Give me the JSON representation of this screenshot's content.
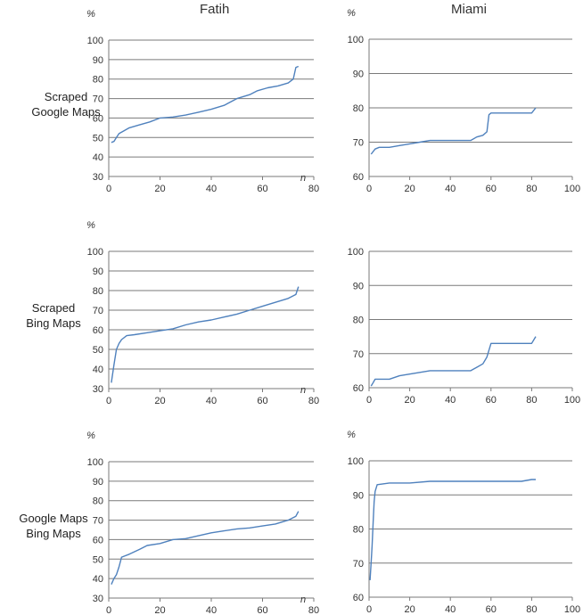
{
  "columns": [
    "Fatih",
    "Miami"
  ],
  "rows": [
    {
      "label_lines": [
        "Scraped",
        "Google Maps"
      ]
    },
    {
      "label_lines": [
        "Scraped",
        "Bing Maps"
      ]
    },
    {
      "label_lines": [
        "Google Maps",
        "Bing Maps"
      ]
    }
  ],
  "y_unit": "%",
  "x_unit": "n",
  "chart_data": [
    {
      "type": "line",
      "panel": "Fatih / Scraped Google Maps",
      "ylim": [
        30,
        100
      ],
      "xlim": [
        0,
        80
      ],
      "yticks": [
        30,
        40,
        50,
        60,
        70,
        80,
        90,
        100
      ],
      "xticks": [
        0,
        20,
        40,
        60,
        80
      ],
      "ylabel": "%",
      "xlabel": "n",
      "grid": "horizontal",
      "x": [
        1,
        2,
        3,
        4,
        6,
        8,
        12,
        16,
        20,
        25,
        30,
        35,
        40,
        45,
        50,
        55,
        58,
        62,
        66,
        70,
        72,
        73,
        74
      ],
      "y": [
        47.5,
        48,
        50,
        52,
        53.5,
        55,
        56.5,
        58,
        60,
        60.5,
        61.5,
        63,
        64.5,
        66.5,
        70,
        72,
        74,
        75.5,
        76.5,
        78,
        80,
        86,
        86.5
      ]
    },
    {
      "type": "line",
      "panel": "Miami / Scraped Google Maps",
      "ylim": [
        60,
        100
      ],
      "xlim": [
        0,
        100
      ],
      "yticks": [
        60,
        70,
        80,
        90,
        100
      ],
      "xticks": [
        0,
        20,
        40,
        60,
        80,
        100
      ],
      "ylabel": "%",
      "xlabel": "",
      "grid": "horizontal",
      "x": [
        1,
        3,
        5,
        10,
        15,
        20,
        25,
        30,
        40,
        50,
        53,
        56,
        58,
        59,
        60,
        70,
        80,
        82
      ],
      "y": [
        66.5,
        68,
        68.5,
        68.5,
        69,
        69.5,
        70,
        70.5,
        70.5,
        70.5,
        71.5,
        72,
        73,
        78,
        78.5,
        78.5,
        78.5,
        80
      ]
    },
    {
      "type": "line",
      "panel": "Fatih / Scraped Bing Maps",
      "ylim": [
        30,
        100
      ],
      "xlim": [
        0,
        80
      ],
      "yticks": [
        30,
        40,
        50,
        60,
        70,
        80,
        90,
        100
      ],
      "xticks": [
        0,
        20,
        40,
        60,
        80
      ],
      "ylabel": "%",
      "xlabel": "n",
      "grid": "horizontal",
      "x": [
        1,
        2,
        3,
        4,
        5,
        7,
        10,
        15,
        20,
        25,
        30,
        35,
        40,
        45,
        50,
        55,
        60,
        65,
        70,
        73,
        74
      ],
      "y": [
        33,
        42,
        50,
        53,
        55,
        57,
        57.5,
        58.5,
        59.5,
        60.5,
        62.5,
        64,
        65,
        66.5,
        68,
        70,
        72,
        74,
        76,
        78,
        82
      ]
    },
    {
      "type": "line",
      "panel": "Miami / Scraped Bing Maps",
      "ylim": [
        60,
        100
      ],
      "xlim": [
        0,
        100
      ],
      "yticks": [
        60,
        70,
        80,
        90,
        100
      ],
      "xticks": [
        0,
        20,
        40,
        60,
        80,
        100
      ],
      "ylabel": "",
      "xlabel": "",
      "grid": "horizontal",
      "x": [
        1,
        2,
        3,
        5,
        10,
        15,
        20,
        25,
        30,
        40,
        50,
        53,
        56,
        58,
        60,
        70,
        80,
        82
      ],
      "y": [
        60.5,
        61.5,
        62.5,
        62.5,
        62.5,
        63.5,
        64,
        64.5,
        65,
        65,
        65,
        66,
        67,
        69,
        73,
        73,
        73,
        75
      ]
    },
    {
      "type": "line",
      "panel": "Fatih / Google Maps vs Bing Maps",
      "ylim": [
        30,
        100
      ],
      "xlim": [
        0,
        80
      ],
      "yticks": [
        30,
        40,
        50,
        60,
        70,
        80,
        90,
        100
      ],
      "xticks": [
        0,
        20,
        40,
        60,
        80
      ],
      "ylabel": "%",
      "xlabel": "n",
      "grid": "horizontal",
      "x": [
        1,
        2,
        3,
        4,
        5,
        8,
        12,
        15,
        20,
        25,
        30,
        35,
        40,
        45,
        50,
        55,
        60,
        65,
        70,
        73,
        74
      ],
      "y": [
        37,
        40,
        42,
        46,
        51,
        52.5,
        55,
        57,
        58,
        60,
        60.5,
        62,
        63.5,
        64.5,
        65.5,
        66,
        67,
        68,
        70,
        72,
        74.5
      ]
    },
    {
      "type": "line",
      "panel": "Miami / Google Maps vs Bing Maps",
      "ylim": [
        60,
        100
      ],
      "xlim": [
        0,
        100
      ],
      "yticks": [
        60,
        70,
        80,
        90,
        100
      ],
      "xticks": [
        0,
        20,
        40,
        60,
        80,
        100
      ],
      "ylabel": "%",
      "xlabel": "",
      "grid": "horizontal",
      "x": [
        0.5,
        1,
        1.5,
        2,
        2.5,
        3,
        4,
        10,
        20,
        30,
        40,
        50,
        60,
        70,
        75,
        80,
        82
      ],
      "y": [
        65,
        70,
        75,
        82,
        88,
        91,
        93,
        93.5,
        93.5,
        94,
        94,
        94,
        94,
        94,
        94,
        94.5,
        94.5
      ]
    }
  ]
}
